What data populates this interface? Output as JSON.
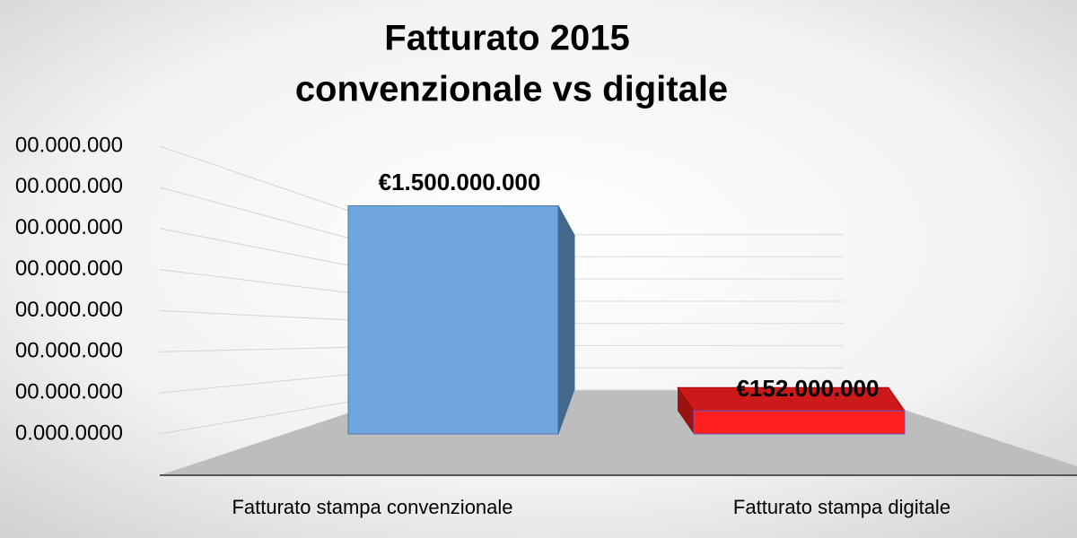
{
  "chart_data": {
    "type": "bar3d",
    "title": [
      "Fatturato 2015",
      "convenzionale vs digitale"
    ],
    "categories": [
      "Fatturato stampa convenzionale",
      "Fatturato stampa digitale"
    ],
    "values": [
      1500000000,
      152000000
    ],
    "value_labels": [
      "€1.500.000.000",
      "€152.000.000"
    ],
    "colors": [
      "#6fa6dd",
      "#ff1f1f"
    ],
    "ylim": [
      200000000,
      1600000000
    ],
    "yticks": [
      {
        "value": 200000000,
        "label": "0.000.0000"
      },
      {
        "value": 400000000,
        "label": "00.000.000"
      },
      {
        "value": 600000000,
        "label": "00.000.000"
      },
      {
        "value": 800000000,
        "label": "00.000.000"
      },
      {
        "value": 1000000000,
        "label": "00.000.000"
      },
      {
        "value": 1200000000,
        "label": "00.000.000"
      },
      {
        "value": 1400000000,
        "label": "00.000.000"
      },
      {
        "value": 1600000000,
        "label": "00.000.000"
      }
    ],
    "grid": true
  }
}
